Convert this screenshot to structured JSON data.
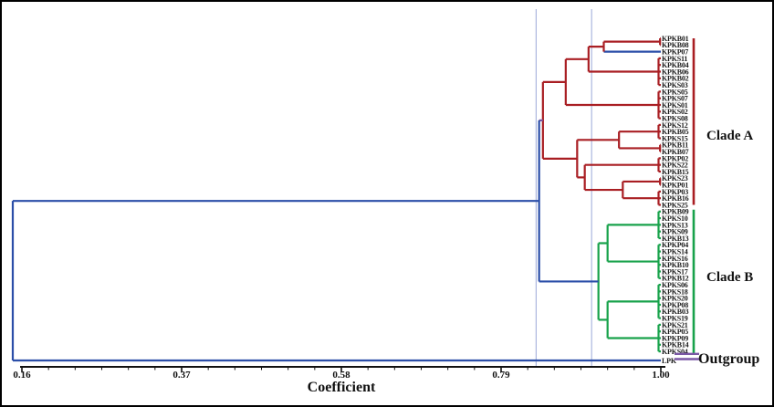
{
  "figure": {
    "axis": {
      "title": "Coefficient",
      "ticks": [
        "0.16",
        "0.37",
        "0.58",
        "0.79",
        "1.00"
      ],
      "tick_values": [
        0.16,
        0.37,
        0.58,
        0.79,
        1.0
      ],
      "min": 0.16,
      "max": 1.0,
      "minor_ticks_per_interval": 5
    },
    "gridline_coefficients": [
      0.836,
      0.909
    ],
    "clade_labels": {
      "a": "Clade A",
      "b": "Clade B",
      "outgroup": "Outgroup"
    },
    "colors": {
      "clade_a": "#a91e23",
      "clade_b": "#18a24b",
      "backbone": "#2b4ea8",
      "outgroup": "#7a57a5",
      "gridline": "#9aa8d8",
      "axis": "#111111",
      "leaf_text": "#1a1a1a"
    }
  },
  "chart_data": {
    "type": "dendrogram",
    "xlabel": "Coefficient",
    "x_ticks": [
      0.16,
      0.37,
      0.58,
      0.79,
      1.0
    ],
    "x_range": [
      0.16,
      1.0
    ],
    "orientation": "right",
    "leaves_clade_a": [
      "KPKB01",
      "KPKB08",
      "KPKP07",
      "KPKS11",
      "KPKB04",
      "KPKB06",
      "KPKB02",
      "KPKS03",
      "KPKS05",
      "KPKS07",
      "KPKS01",
      "KPKS02",
      "KPKS08",
      "KPKS12",
      "KPKB05",
      "KPKS15",
      "KPKB11",
      "KPKB07",
      "KPKP02",
      "KPKS22",
      "KPKB15",
      "KPKS23",
      "KPKP01",
      "KPKP03",
      "KPKB16",
      "KPKS25"
    ],
    "leaves_clade_b": [
      "KPKB09",
      "KPKS10",
      "KPKS13",
      "KPKS09",
      "KPKB13",
      "KPKP04",
      "KPKS14",
      "KPKS16",
      "KPKB10",
      "KPKS17",
      "KPKB12",
      "KPKS06",
      "KPKS18",
      "KPKS20",
      "KPKP08",
      "KPKB03",
      "KPKS19",
      "KPKS21",
      "KPKP05",
      "KPKP09",
      "KPKB14",
      "KPKS04"
    ],
    "outgroup_leaf": "LPK",
    "root_coefficient": 0.148,
    "clade_a_root_coefficient": 0.845,
    "clade_b_root_coefficient": 0.918,
    "clades_join_coefficient": 0.84,
    "tree": {
      "c": 0.148,
      "color": "backbone",
      "children": [
        {
          "c": 0.84,
          "color": "backbone",
          "children": [
            {
              "c": 0.845,
              "color": "clade_a",
              "branch_color": "outgroup",
              "children": [
                {
                  "c": 0.875,
                  "color": "clade_a",
                  "children": [
                    {
                      "c": 0.905,
                      "color": "clade_a",
                      "children": [
                        {
                          "c": 0.925,
                          "color": "clade_a",
                          "children": [
                            {
                              "c": 0.999,
                              "color": "clade_a",
                              "children": [
                                {
                                  "leaf": 0
                                },
                                {
                                  "leaf": 1
                                }
                              ]
                            },
                            {
                              "leaf": 2,
                              "branch_color": "backbone"
                            }
                          ]
                        },
                        {
                          "c": 0.997,
                          "color": "clade_a",
                          "children": [
                            {
                              "leaf": 3
                            },
                            {
                              "leaf": 4
                            },
                            {
                              "leaf": 5
                            },
                            {
                              "leaf": 6
                            },
                            {
                              "leaf": 7
                            }
                          ]
                        }
                      ]
                    },
                    {
                      "c": 0.997,
                      "color": "clade_a",
                      "children": [
                        {
                          "leaf": 8
                        },
                        {
                          "leaf": 9
                        },
                        {
                          "leaf": 10
                        },
                        {
                          "leaf": 11
                        },
                        {
                          "leaf": 12
                        }
                      ]
                    }
                  ]
                },
                {
                  "c": 0.89,
                  "color": "clade_a",
                  "children": [
                    {
                      "c": 0.945,
                      "color": "clade_a",
                      "children": [
                        {
                          "c": 0.997,
                          "color": "clade_a",
                          "children": [
                            {
                              "leaf": 13
                            },
                            {
                              "leaf": 14
                            },
                            {
                              "leaf": 15
                            }
                          ]
                        },
                        {
                          "c": 0.999,
                          "color": "clade_a",
                          "children": [
                            {
                              "leaf": 16
                            },
                            {
                              "leaf": 17
                            }
                          ]
                        }
                      ]
                    },
                    {
                      "c": 0.9,
                      "color": "clade_a",
                      "children": [
                        {
                          "c": 0.997,
                          "color": "clade_a",
                          "children": [
                            {
                              "leaf": 18
                            },
                            {
                              "leaf": 19
                            },
                            {
                              "leaf": 20
                            }
                          ]
                        },
                        {
                          "c": 0.95,
                          "color": "clade_a",
                          "children": [
                            {
                              "c": 0.999,
                              "color": "clade_a",
                              "children": [
                                {
                                  "leaf": 21
                                },
                                {
                                  "leaf": 22
                                }
                              ]
                            },
                            {
                              "c": 0.997,
                              "color": "clade_a",
                              "children": [
                                {
                                  "leaf": 23
                                },
                                {
                                  "leaf": 24
                                },
                                {
                                  "leaf": 25
                                }
                              ]
                            }
                          ]
                        }
                      ]
                    }
                  ]
                }
              ]
            },
            {
              "c": 0.918,
              "color": "clade_b",
              "children": [
                {
                  "c": 0.93,
                  "color": "clade_b",
                  "children": [
                    {
                      "c": 0.997,
                      "color": "clade_b",
                      "children": [
                        {
                          "leaf": 26
                        },
                        {
                          "leaf": 27
                        },
                        {
                          "leaf": 28
                        },
                        {
                          "leaf": 29
                        },
                        {
                          "leaf": 30
                        }
                      ]
                    },
                    {
                      "c": 0.997,
                      "color": "clade_b",
                      "children": [
                        {
                          "leaf": 31
                        },
                        {
                          "leaf": 32
                        },
                        {
                          "leaf": 33
                        },
                        {
                          "leaf": 34
                        },
                        {
                          "leaf": 35
                        },
                        {
                          "leaf": 36
                        }
                      ]
                    }
                  ]
                },
                {
                  "c": 0.93,
                  "color": "clade_b",
                  "children": [
                    {
                      "c": 0.997,
                      "color": "clade_b",
                      "children": [
                        {
                          "leaf": 37
                        },
                        {
                          "leaf": 38
                        },
                        {
                          "leaf": 39
                        },
                        {
                          "leaf": 40
                        },
                        {
                          "leaf": 41
                        },
                        {
                          "leaf": 42
                        }
                      ]
                    },
                    {
                      "c": 0.997,
                      "color": "clade_b",
                      "children": [
                        {
                          "leaf": 43
                        },
                        {
                          "leaf": 44
                        },
                        {
                          "leaf": 45
                        },
                        {
                          "leaf": 46
                        },
                        {
                          "leaf": 47
                        }
                      ]
                    }
                  ]
                }
              ]
            }
          ]
        },
        {
          "leaf": 48,
          "branch_color": "backbone"
        }
      ]
    }
  }
}
